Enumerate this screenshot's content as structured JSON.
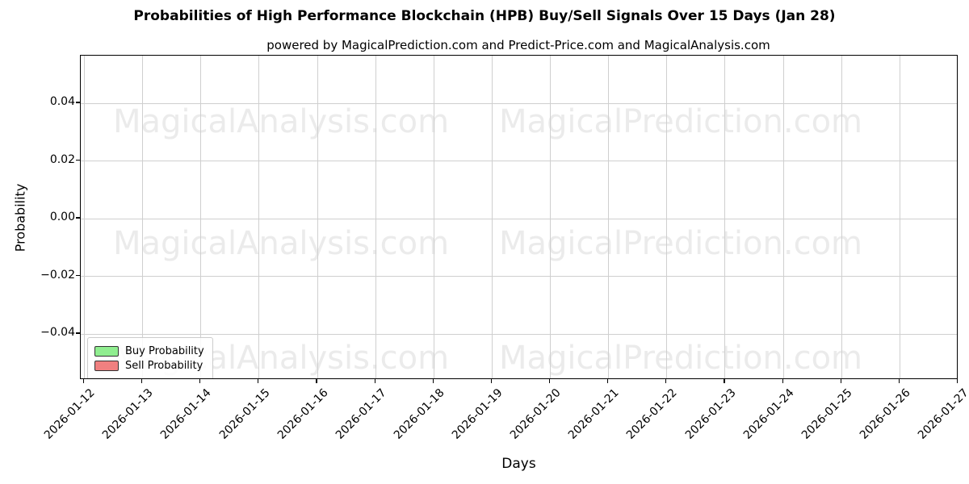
{
  "chart_data": {
    "type": "line",
    "title": "Probabilities of High Performance Blockchain (HPB) Buy/Sell Signals Over 15 Days (Jan 28)",
    "subtitle": "powered by MagicalPrediction.com and Predict-Price.com and MagicalAnalysis.com",
    "xlabel": "Days",
    "ylabel": "Probability",
    "categories": [
      "2026-01-12",
      "2026-01-13",
      "2026-01-14",
      "2026-01-15",
      "2026-01-16",
      "2026-01-17",
      "2026-01-18",
      "2026-01-19",
      "2026-01-20",
      "2026-01-21",
      "2026-01-22",
      "2026-01-23",
      "2026-01-24",
      "2026-01-25",
      "2026-01-26",
      "2026-01-27"
    ],
    "y_ticks": [
      {
        "value": 0.04,
        "label": "0.04"
      },
      {
        "value": 0.02,
        "label": "0.02"
      },
      {
        "value": 0.0,
        "label": "0.00"
      },
      {
        "value": -0.02,
        "label": "−0.02"
      },
      {
        "value": -0.04,
        "label": "−0.04"
      }
    ],
    "ylim": [
      -0.056,
      0.0565
    ],
    "grid": true,
    "series": [
      {
        "name": "Buy Probability",
        "color": "#90EE90",
        "edge_color": "#333333",
        "values": []
      },
      {
        "name": "Sell Probability",
        "color": "#F08080",
        "edge_color": "#333333",
        "values": []
      }
    ],
    "legend": {
      "position": "lower left",
      "entries": [
        {
          "label": "Buy Probability",
          "color": "#90EE90",
          "edge": "#333333"
        },
        {
          "label": "Sell Probability",
          "color": "#F08080",
          "edge": "#333333"
        }
      ]
    },
    "watermarks": {
      "color": "#ebebeb",
      "texts": [
        "MagicalAnalysis.com",
        "MagicalPrediction.com"
      ]
    }
  }
}
